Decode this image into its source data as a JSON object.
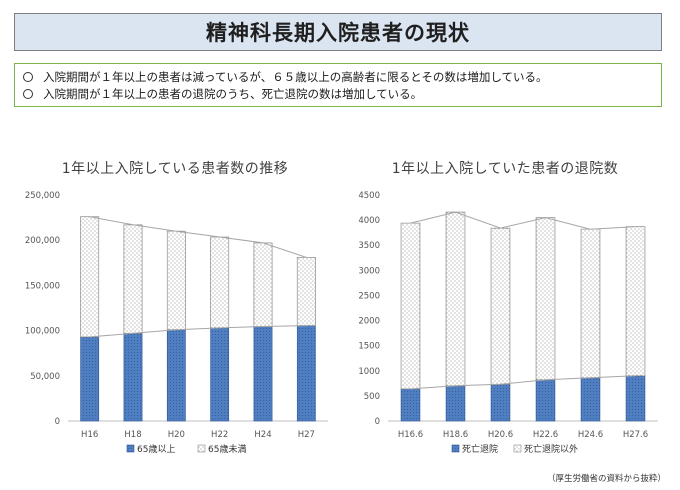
{
  "header": {
    "title": "精神科長期入院患者の現状"
  },
  "summary": {
    "lines": [
      "入院期間が１年以上の患者は減っているが、６５歳以上の高齢者に限るとその数は増加している。",
      "入院期間が１年以上の患者の退院のうち、死亡退院の数は増加している。"
    ]
  },
  "source_note": "（厚生労働省の資料から抜粋）",
  "colors": {
    "accent_bar": "#4f7fc0",
    "accent_bar_stroke": "#2e5597",
    "trend_line": "#a6a6a6",
    "title_bg": "#dbe5f1",
    "summary_border": "#7ab648"
  },
  "chart_data": [
    {
      "type": "bar",
      "stacked": true,
      "title": "1年以上入院している患者数の推移",
      "categories": [
        "H16",
        "H18",
        "H20",
        "H22",
        "H24",
        "H27"
      ],
      "series": [
        {
          "name": "65歳以上",
          "values": [
            93000,
            97000,
            101000,
            103000,
            104500,
            105500
          ]
        },
        {
          "name": "65歳未満",
          "values": [
            133000,
            120000,
            109000,
            100500,
            92500,
            75500
          ]
        }
      ],
      "ylim": [
        0,
        250000
      ],
      "yticks": [
        0,
        50000,
        100000,
        150000,
        200000,
        250000
      ],
      "ytick_labels": [
        "0",
        "50,000",
        "100,000",
        "150,000",
        "200,000",
        "250,000"
      ],
      "grid": false,
      "legend": "bottom"
    },
    {
      "type": "bar",
      "stacked": true,
      "title": "1年以上入院していた患者の退院数",
      "categories": [
        "H16.6",
        "H18.6",
        "H20.6",
        "H22.6",
        "H24.6",
        "H27.6"
      ],
      "series": [
        {
          "name": "死亡退院",
          "values": [
            640,
            700,
            730,
            820,
            860,
            900
          ]
        },
        {
          "name": "死亡退院以外",
          "values": [
            3300,
            3460,
            3110,
            3230,
            2960,
            2970
          ]
        }
      ],
      "ylim": [
        0,
        4500
      ],
      "yticks": [
        0,
        500,
        1000,
        1500,
        2000,
        2500,
        3000,
        3500,
        4000,
        4500
      ],
      "ytick_labels": [
        "0",
        "500",
        "1000",
        "1500",
        "2000",
        "2500",
        "3000",
        "3500",
        "4000",
        "4500"
      ],
      "grid": false,
      "legend": "bottom"
    }
  ]
}
